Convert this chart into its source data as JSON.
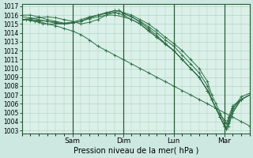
{
  "bg_color": "#cce8e0",
  "plot_bg_color": "#daf0e8",
  "grid_color": "#a8cfc0",
  "line_color": "#2d6e45",
  "title": "Pression niveau de la mer( hPa )",
  "ylim": [
    1003,
    1017
  ],
  "yticks": [
    1003,
    1004,
    1005,
    1006,
    1007,
    1008,
    1009,
    1010,
    1011,
    1012,
    1013,
    1014,
    1015,
    1016,
    1017
  ],
  "day_labels": [
    "Sam",
    "Dim",
    "Lun",
    "Mar"
  ],
  "day_positions": [
    24,
    48,
    72,
    96
  ],
  "xlim": [
    0,
    108
  ],
  "lines": [
    [
      0,
      1015.5,
      2,
      1015.5,
      4,
      1015.4,
      6,
      1015.3,
      8,
      1015.2,
      10,
      1015.0,
      12,
      1015.0,
      16,
      1014.8,
      20,
      1014.5,
      24,
      1014.2,
      28,
      1013.8,
      32,
      1013.2,
      36,
      1012.5,
      40,
      1012.0,
      44,
      1011.5,
      48,
      1011.0,
      52,
      1010.5,
      56,
      1010.0,
      60,
      1009.5,
      64,
      1009.0,
      68,
      1008.5,
      72,
      1008.0,
      76,
      1007.5,
      80,
      1007.0,
      84,
      1006.5,
      88,
      1006.0,
      92,
      1005.5,
      96,
      1005.0,
      100,
      1004.5,
      104,
      1004.0,
      108,
      1003.5
    ],
    [
      0,
      1015.5,
      4,
      1015.6,
      8,
      1015.7,
      12,
      1015.8,
      16,
      1015.7,
      20,
      1015.5,
      24,
      1015.3,
      28,
      1015.0,
      32,
      1015.2,
      36,
      1015.5,
      40,
      1016.0,
      44,
      1016.3,
      46,
      1016.5,
      48,
      1016.3,
      52,
      1016.0,
      56,
      1015.5,
      60,
      1015.0,
      64,
      1014.3,
      68,
      1013.5,
      72,
      1012.8,
      76,
      1012.0,
      80,
      1011.0,
      84,
      1010.0,
      88,
      1008.5,
      90,
      1007.0,
      92,
      1006.0,
      94,
      1005.0,
      96,
      1003.8,
      97,
      1003.2,
      98,
      1003.5,
      100,
      1005.0,
      104,
      1006.5,
      108,
      1007.0
    ],
    [
      0,
      1015.5,
      4,
      1015.5,
      8,
      1015.4,
      12,
      1015.3,
      16,
      1015.2,
      20,
      1015.0,
      24,
      1015.1,
      28,
      1015.3,
      32,
      1015.7,
      36,
      1016.0,
      40,
      1016.2,
      44,
      1016.5,
      46,
      1016.5,
      48,
      1016.2,
      52,
      1015.8,
      56,
      1015.3,
      60,
      1014.7,
      64,
      1014.0,
      68,
      1013.2,
      72,
      1012.5,
      76,
      1011.5,
      80,
      1010.5,
      84,
      1009.5,
      88,
      1008.0,
      90,
      1006.5,
      92,
      1005.5,
      94,
      1004.5,
      96,
      1003.5,
      97,
      1003.2,
      98,
      1003.8,
      100,
      1005.2,
      104,
      1006.5,
      108,
      1007.0
    ],
    [
      0,
      1015.8,
      4,
      1015.7,
      8,
      1015.5,
      12,
      1015.3,
      16,
      1015.1,
      20,
      1015.0,
      24,
      1015.1,
      28,
      1015.3,
      32,
      1015.7,
      36,
      1016.0,
      40,
      1016.2,
      44,
      1016.3,
      46,
      1016.2,
      48,
      1016.0,
      52,
      1015.5,
      56,
      1015.0,
      60,
      1014.2,
      64,
      1013.5,
      68,
      1012.8,
      72,
      1012.0,
      76,
      1011.0,
      80,
      1010.0,
      84,
      1009.0,
      88,
      1007.5,
      90,
      1006.5,
      92,
      1005.5,
      94,
      1004.8,
      96,
      1004.2,
      97,
      1003.8,
      98,
      1004.5,
      100,
      1005.8,
      104,
      1006.5,
      108,
      1007.0
    ],
    [
      0,
      1015.5,
      4,
      1015.5,
      8,
      1015.3,
      12,
      1015.0,
      16,
      1015.0,
      20,
      1015.0,
      24,
      1015.1,
      28,
      1015.3,
      32,
      1015.6,
      36,
      1015.8,
      40,
      1016.0,
      44,
      1016.0,
      48,
      1015.8,
      52,
      1015.5,
      56,
      1015.0,
      60,
      1014.3,
      64,
      1013.5,
      68,
      1012.7,
      72,
      1012.0,
      76,
      1011.0,
      80,
      1010.0,
      84,
      1009.0,
      88,
      1007.5,
      90,
      1006.5,
      92,
      1005.5,
      94,
      1004.5,
      96,
      1003.5,
      97,
      1003.2,
      98,
      1004.0,
      100,
      1005.5,
      104,
      1006.5,
      108,
      1007.0
    ],
    [
      0,
      1016.0,
      4,
      1016.0,
      8,
      1015.8,
      12,
      1015.5,
      16,
      1015.3,
      20,
      1015.1,
      24,
      1015.2,
      28,
      1015.5,
      32,
      1015.8,
      36,
      1016.0,
      40,
      1016.3,
      44,
      1016.5,
      46,
      1016.5,
      48,
      1016.2,
      52,
      1015.8,
      56,
      1015.2,
      60,
      1014.5,
      64,
      1013.7,
      68,
      1012.8,
      72,
      1012.0,
      76,
      1011.0,
      80,
      1010.0,
      84,
      1009.0,
      88,
      1007.5,
      90,
      1006.5,
      92,
      1005.5,
      94,
      1004.5,
      96,
      1003.5,
      97,
      1003.2,
      98,
      1004.2,
      100,
      1005.5,
      104,
      1006.8,
      108,
      1007.2
    ]
  ]
}
